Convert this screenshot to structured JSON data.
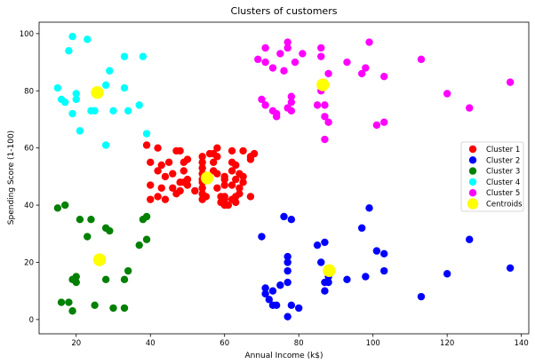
{
  "chart_data": {
    "type": "scatter",
    "title": "Clusters of customers",
    "xlabel": "Annual Income (k$)",
    "ylabel": "Spending Score (1-100)",
    "xlim": [
      10,
      142
    ],
    "ylim": [
      -5,
      104
    ],
    "xticks": [
      20,
      40,
      60,
      80,
      100,
      120,
      140
    ],
    "yticks": [
      0,
      20,
      40,
      60,
      80,
      100
    ],
    "grid": false,
    "legend_position": "center-right",
    "series": [
      {
        "name": "Cluster 1",
        "color": "#ff0000",
        "points": [
          [
            39,
            61
          ],
          [
            40,
            55
          ],
          [
            40,
            47
          ],
          [
            42,
            52
          ],
          [
            42,
            60
          ],
          [
            43,
            54
          ],
          [
            44,
            50
          ],
          [
            45,
            55
          ],
          [
            46,
            51
          ],
          [
            46,
            46
          ],
          [
            47,
            59
          ],
          [
            48,
            59
          ],
          [
            48,
            48
          ],
          [
            49,
            52
          ],
          [
            49,
            55
          ],
          [
            50,
            56
          ],
          [
            50,
            49
          ],
          [
            40,
            42
          ],
          [
            42,
            43
          ],
          [
            43,
            46
          ],
          [
            44,
            42
          ],
          [
            47,
            44
          ],
          [
            48,
            45
          ],
          [
            49,
            48
          ],
          [
            50,
            47
          ],
          [
            54,
            57
          ],
          [
            54,
            55
          ],
          [
            54,
            53
          ],
          [
            54,
            51
          ],
          [
            54,
            48
          ],
          [
            54,
            46
          ],
          [
            54,
            44
          ],
          [
            54,
            42
          ],
          [
            54,
            49
          ],
          [
            57,
            55
          ],
          [
            57,
            52
          ],
          [
            58,
            60
          ],
          [
            58,
            57
          ],
          [
            58,
            46
          ],
          [
            59,
            41
          ],
          [
            60,
            50
          ],
          [
            60,
            47
          ],
          [
            60,
            49
          ],
          [
            60,
            42
          ],
          [
            61,
            40
          ],
          [
            62,
            52
          ],
          [
            62,
            59
          ],
          [
            62,
            55
          ],
          [
            62,
            42
          ],
          [
            63,
            43
          ],
          [
            63,
            41
          ],
          [
            63,
            54
          ],
          [
            64,
            46
          ],
          [
            64,
            51
          ],
          [
            65,
            48
          ],
          [
            65,
            50
          ],
          [
            65,
            59
          ],
          [
            67,
            56
          ],
          [
            67,
            57
          ],
          [
            67,
            43
          ],
          [
            68,
            58
          ],
          [
            59,
            43
          ],
          [
            60,
            40
          ],
          [
            57,
            58
          ],
          [
            56,
            58
          ],
          [
            55,
            43
          ],
          [
            60,
            43
          ],
          [
            64,
            44
          ],
          [
            62,
            47
          ],
          [
            63,
            49
          ],
          [
            52,
            45
          ],
          [
            58,
            51
          ]
        ]
      },
      {
        "name": "Cluster 2",
        "color": "#0000ff",
        "points": [
          [
            70,
            29
          ],
          [
            71,
            11
          ],
          [
            71,
            9
          ],
          [
            72,
            7
          ],
          [
            73,
            5
          ],
          [
            73,
            10
          ],
          [
            74,
            5
          ],
          [
            75,
            12
          ],
          [
            76,
            36
          ],
          [
            77,
            22
          ],
          [
            77,
            20
          ],
          [
            77,
            17
          ],
          [
            77,
            13
          ],
          [
            77,
            1
          ],
          [
            78,
            35
          ],
          [
            78,
            5
          ],
          [
            80,
            4
          ],
          [
            85,
            26
          ],
          [
            86,
            20
          ],
          [
            87,
            27
          ],
          [
            87,
            13
          ],
          [
            87,
            10
          ],
          [
            88,
            15
          ],
          [
            88,
            13
          ],
          [
            93,
            14
          ],
          [
            97,
            32
          ],
          [
            98,
            15
          ],
          [
            99,
            39
          ],
          [
            101,
            24
          ],
          [
            103,
            23
          ],
          [
            103,
            17
          ],
          [
            113,
            8
          ],
          [
            120,
            16
          ],
          [
            126,
            28
          ],
          [
            137,
            18
          ]
        ]
      },
      {
        "name": "Cluster 3",
        "color": "#008000",
        "points": [
          [
            15,
            39
          ],
          [
            16,
            6
          ],
          [
            17,
            40
          ],
          [
            18,
            6
          ],
          [
            19,
            3
          ],
          [
            19,
            14
          ],
          [
            20,
            15
          ],
          [
            20,
            13
          ],
          [
            21,
            35
          ],
          [
            23,
            29
          ],
          [
            24,
            35
          ],
          [
            25,
            5
          ],
          [
            28,
            14
          ],
          [
            28,
            32
          ],
          [
            29,
            31
          ],
          [
            30,
            4
          ],
          [
            33,
            4
          ],
          [
            33,
            14
          ],
          [
            34,
            17
          ],
          [
            37,
            26
          ],
          [
            38,
            35
          ],
          [
            39,
            36
          ],
          [
            39,
            28
          ]
        ]
      },
      {
        "name": "Cluster 4",
        "color": "#00ffff",
        "points": [
          [
            15,
            81
          ],
          [
            16,
            77
          ],
          [
            17,
            76
          ],
          [
            18,
            94
          ],
          [
            19,
            72
          ],
          [
            19,
            99
          ],
          [
            20,
            77
          ],
          [
            20,
            79
          ],
          [
            21,
            66
          ],
          [
            23,
            98
          ],
          [
            24,
            73
          ],
          [
            25,
            73
          ],
          [
            28,
            82
          ],
          [
            28,
            61
          ],
          [
            29,
            87
          ],
          [
            30,
            73
          ],
          [
            33,
            92
          ],
          [
            33,
            81
          ],
          [
            34,
            73
          ],
          [
            37,
            75
          ],
          [
            38,
            92
          ],
          [
            39,
            65
          ]
        ]
      },
      {
        "name": "Cluster 5",
        "color": "#ff00ff",
        "points": [
          [
            69,
            91
          ],
          [
            70,
            77
          ],
          [
            71,
            95
          ],
          [
            71,
            75
          ],
          [
            73,
            88
          ],
          [
            73,
            73
          ],
          [
            74,
            72
          ],
          [
            75,
            93
          ],
          [
            76,
            87
          ],
          [
            77,
            97
          ],
          [
            77,
            74
          ],
          [
            78,
            78
          ],
          [
            78,
            76
          ],
          [
            78,
            73
          ],
          [
            79,
            90
          ],
          [
            81,
            93
          ],
          [
            85,
            75
          ],
          [
            86,
            95
          ],
          [
            86,
            92
          ],
          [
            87,
            75
          ],
          [
            87,
            63
          ],
          [
            87,
            71
          ],
          [
            88,
            69
          ],
          [
            88,
            86
          ],
          [
            93,
            90
          ],
          [
            97,
            86
          ],
          [
            98,
            88
          ],
          [
            99,
            97
          ],
          [
            101,
            68
          ],
          [
            103,
            85
          ],
          [
            103,
            69
          ],
          [
            113,
            91
          ],
          [
            120,
            79
          ],
          [
            126,
            74
          ],
          [
            137,
            83
          ],
          [
            71,
            90
          ],
          [
            74,
            71
          ],
          [
            77,
            95
          ],
          [
            86,
            80
          ]
        ]
      },
      {
        "name": "Centroids",
        "color": "#ffff00",
        "marker_size": "large",
        "points": [
          [
            55.3,
            49.5
          ],
          [
            88.2,
            17.1
          ],
          [
            26.3,
            20.9
          ],
          [
            25.7,
            79.4
          ],
          [
            86.5,
            82.1
          ]
        ]
      }
    ]
  }
}
